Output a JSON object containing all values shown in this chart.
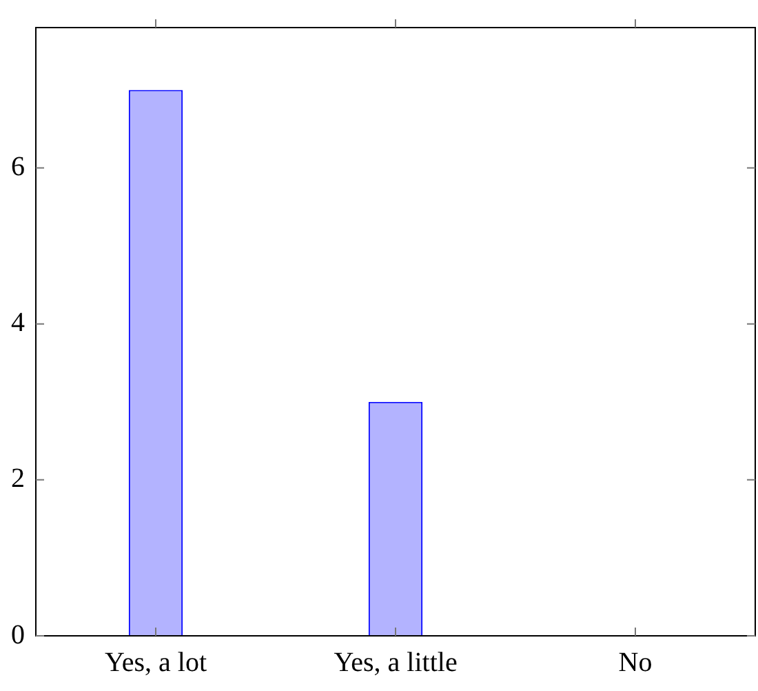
{
  "chart_data": {
    "type": "bar",
    "categories": [
      "Yes, a lot",
      "Yes, a little",
      "No"
    ],
    "series": [
      {
        "color": "#b3b3ff",
        "values": [
          7,
          3,
          0
        ]
      }
    ],
    "ylim": [
      0,
      7.8
    ],
    "yticks": [
      0,
      2,
      4,
      6
    ],
    "grid": false,
    "legend": false
  }
}
